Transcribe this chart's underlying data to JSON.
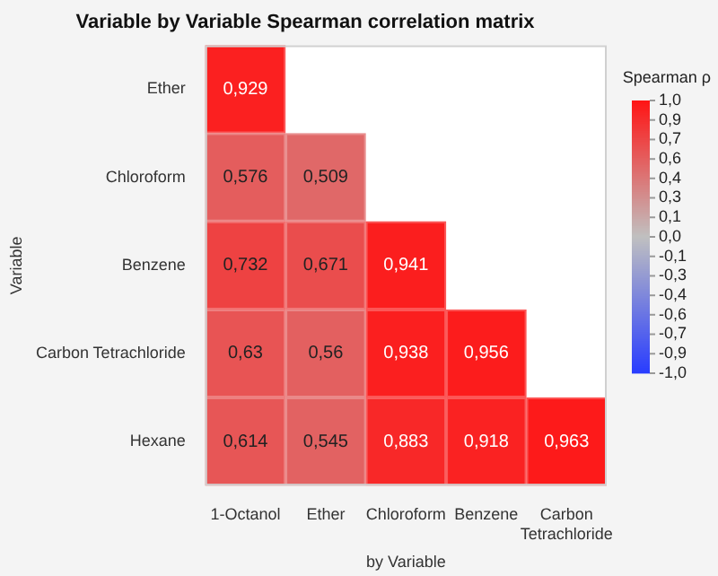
{
  "chart_data": {
    "type": "heatmap",
    "title": "Variable by Variable Spearman correlation matrix",
    "xlabel": "by Variable",
    "ylabel": "Variable",
    "clabel": "Spearman ρ",
    "categories": [
      "1-Octanol",
      "Ether",
      "Chloroform",
      "Benzene",
      "Carbon Tetrachloride"
    ],
    "y_categories": [
      "Ether",
      "Chloroform",
      "Benzene",
      "Carbon Tetrachloride",
      "Hexane"
    ],
    "cells": [
      [
        0.929,
        null,
        null,
        null,
        null
      ],
      [
        0.576,
        0.509,
        null,
        null,
        null
      ],
      [
        0.732,
        0.671,
        0.941,
        null,
        null
      ],
      [
        0.63,
        0.56,
        0.938,
        0.956,
        null
      ],
      [
        0.614,
        0.545,
        0.883,
        0.918,
        0.963
      ]
    ],
    "cell_labels": [
      [
        "0,929",
        null,
        null,
        null,
        null
      ],
      [
        "0,576",
        "0,509",
        null,
        null,
        null
      ],
      [
        "0,732",
        "0,671",
        "0,941",
        null,
        null
      ],
      [
        "0,63",
        "0,56",
        "0,938",
        "0,956",
        null
      ],
      [
        "0,614",
        "0,545",
        "0,883",
        "0,918",
        "0,963"
      ]
    ],
    "clim": [
      -1,
      1
    ],
    "cticks": [
      {
        "value": 1,
        "label": "1,0"
      },
      {
        "value": 0.857,
        "label": "0,9"
      },
      {
        "value": 0.714,
        "label": "0,7"
      },
      {
        "value": 0.571,
        "label": "0,6"
      },
      {
        "value": 0.429,
        "label": "0,4"
      },
      {
        "value": 0.286,
        "label": "0,3"
      },
      {
        "value": 0.143,
        "label": "0,1"
      },
      {
        "value": 0,
        "label": "0,0"
      },
      {
        "value": -0.143,
        "label": "-0,1"
      },
      {
        "value": -0.286,
        "label": "-0,3"
      },
      {
        "value": -0.429,
        "label": "-0,4"
      },
      {
        "value": -0.571,
        "label": "-0,6"
      },
      {
        "value": -0.714,
        "label": "-0,7"
      },
      {
        "value": -0.857,
        "label": "-0,9"
      },
      {
        "value": -1,
        "label": "-1,0"
      }
    ]
  }
}
